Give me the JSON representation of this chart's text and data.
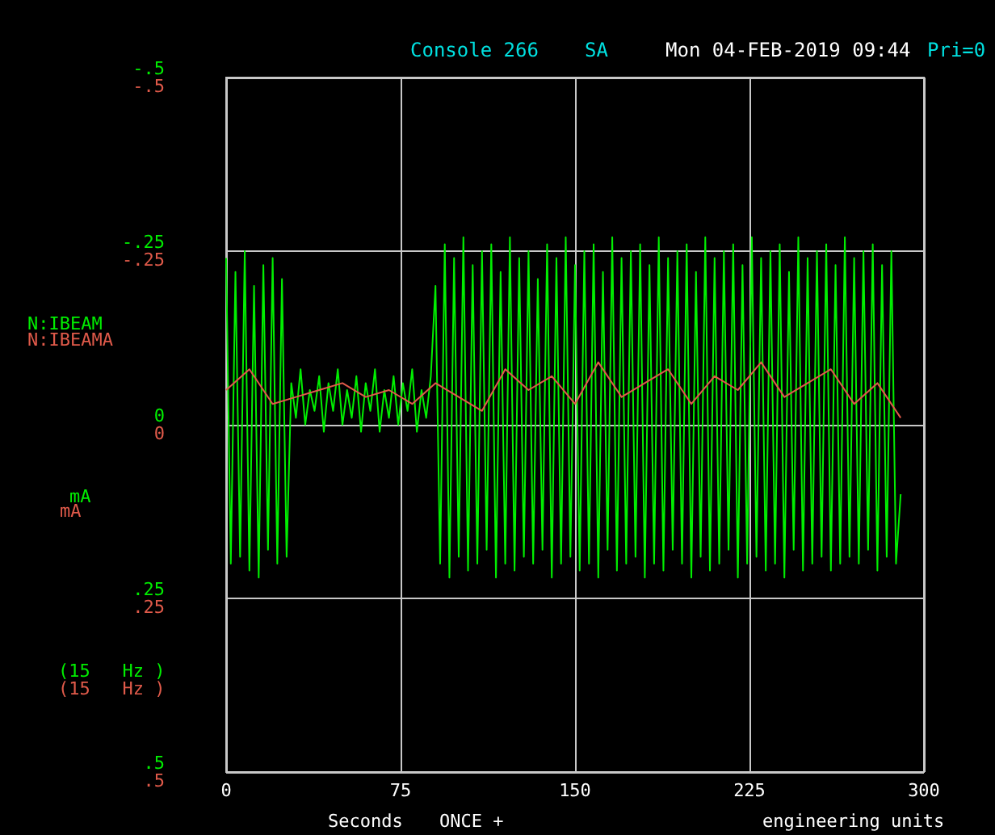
{
  "chart_data": {
    "type": "line",
    "title": "Console 266",
    "xlabel": "Seconds",
    "annotations": [
      "SA",
      "Mon 04-FEB-2019 09:44",
      "Pri=0",
      "mA",
      "mA",
      "(15   Hz )",
      "(15   Hz )",
      "ONCE +",
      "engineering units"
    ],
    "xlim": [
      0,
      300
    ],
    "xticks": [
      0,
      75,
      150,
      225,
      300
    ],
    "ylim": [
      0.5,
      -0.5
    ],
    "yticks": [
      {
        "value": -0.5,
        "label": "-.5"
      },
      {
        "value": -0.25,
        "label": "-.25"
      },
      0,
      {
        "value": 0.25,
        "label": ".25"
      },
      {
        "value": 0.5,
        "label": ".5"
      }
    ],
    "y2lim": [
      0.5,
      -0.5
    ],
    "y2ticks": [
      {
        "value": -0.5,
        "label": "-.5"
      },
      {
        "value": -0.25,
        "label": "-.25"
      },
      0,
      {
        "value": 0.25,
        "label": ".25"
      },
      {
        "value": 0.5,
        "label": ".5"
      }
    ],
    "grid": true,
    "legend": false,
    "marker": "none",
    "line_style": "solid",
    "series": [
      {
        "name": "N:IBEAM",
        "color": "#00ee00",
        "x": [
          0,
          2,
          4,
          6,
          8,
          10,
          12,
          14,
          16,
          18,
          20,
          22,
          24,
          26,
          28,
          30,
          32,
          34,
          36,
          38,
          40,
          42,
          44,
          46,
          48,
          50,
          52,
          54,
          56,
          58,
          60,
          62,
          64,
          66,
          68,
          70,
          72,
          74,
          76,
          78,
          80,
          82,
          84,
          86,
          88,
          90,
          92,
          94,
          96,
          98,
          100,
          102,
          104,
          106,
          108,
          110,
          112,
          114,
          116,
          118,
          120,
          122,
          124,
          126,
          128,
          130,
          132,
          134,
          136,
          138,
          140,
          142,
          144,
          146,
          148,
          150,
          152,
          154,
          156,
          158,
          160,
          162,
          164,
          166,
          168,
          170,
          172,
          174,
          176,
          178,
          180,
          182,
          184,
          186,
          188,
          190,
          192,
          194,
          196,
          198,
          200,
          202,
          204,
          206,
          208,
          210,
          212,
          214,
          216,
          218,
          220,
          222,
          224,
          226,
          228,
          230,
          232,
          234,
          236,
          238,
          240,
          242,
          244,
          246,
          248,
          250,
          252,
          254,
          256,
          258,
          260,
          262,
          264,
          266,
          268,
          270,
          272,
          274,
          276,
          278,
          280,
          282,
          284,
          286,
          288,
          290
        ],
        "values": [
          -0.24,
          0.2,
          -0.22,
          0.19,
          -0.25,
          0.21,
          -0.2,
          0.22,
          -0.23,
          0.18,
          -0.24,
          0.2,
          -0.21,
          0.19,
          -0.06,
          -0.01,
          -0.08,
          0.0,
          -0.05,
          -0.02,
          -0.07,
          0.01,
          -0.06,
          -0.02,
          -0.08,
          0.0,
          -0.05,
          -0.01,
          -0.07,
          0.01,
          -0.06,
          -0.02,
          -0.08,
          0.01,
          -0.05,
          -0.01,
          -0.07,
          0.0,
          -0.06,
          -0.02,
          -0.08,
          0.01,
          -0.05,
          -0.01,
          -0.07,
          -0.2,
          0.2,
          -0.26,
          0.22,
          -0.24,
          0.19,
          -0.27,
          0.21,
          -0.23,
          0.2,
          -0.25,
          0.18,
          -0.26,
          0.22,
          -0.22,
          0.2,
          -0.27,
          0.21,
          -0.24,
          0.19,
          -0.25,
          0.2,
          -0.21,
          0.18,
          -0.26,
          0.22,
          -0.24,
          0.2,
          -0.27,
          0.19,
          -0.23,
          0.21,
          -0.25,
          0.2,
          -0.26,
          0.22,
          -0.22,
          0.18,
          -0.27,
          0.21,
          -0.24,
          0.2,
          -0.25,
          0.19,
          -0.26,
          0.22,
          -0.23,
          0.2,
          -0.27,
          0.21,
          -0.24,
          0.18,
          -0.25,
          0.2,
          -0.26,
          0.22,
          -0.22,
          0.19,
          -0.27,
          0.21,
          -0.24,
          0.2,
          -0.25,
          0.18,
          -0.26,
          0.22,
          -0.23,
          0.2,
          -0.27,
          0.19,
          -0.24,
          0.21,
          -0.25,
          0.2,
          -0.26,
          0.22,
          -0.22,
          0.18,
          -0.27,
          0.21,
          -0.24,
          0.2,
          -0.25,
          0.19,
          -0.26,
          0.21,
          -0.23,
          0.2,
          -0.27,
          0.19,
          -0.24,
          0.2,
          -0.25,
          0.18,
          -0.26,
          0.21,
          -0.23,
          0.19,
          -0.25,
          0.2,
          0.1
        ]
      },
      {
        "name": "N:IBEAMA",
        "color": "#e05a4a",
        "axis": "y2",
        "x": [
          0,
          10,
          20,
          30,
          40,
          50,
          60,
          70,
          80,
          90,
          100,
          110,
          120,
          130,
          140,
          150,
          160,
          170,
          180,
          190,
          200,
          210,
          220,
          230,
          240,
          250,
          260,
          270,
          280,
          290
        ],
        "values": [
          -0.05,
          -0.08,
          -0.03,
          -0.04,
          -0.05,
          -0.06,
          -0.04,
          -0.05,
          -0.03,
          -0.06,
          -0.04,
          -0.02,
          -0.08,
          -0.05,
          -0.07,
          -0.03,
          -0.09,
          -0.04,
          -0.06,
          -0.08,
          -0.03,
          -0.07,
          -0.05,
          -0.09,
          -0.04,
          -0.06,
          -0.08,
          -0.03,
          -0.06,
          -0.01
        ]
      }
    ]
  }
}
